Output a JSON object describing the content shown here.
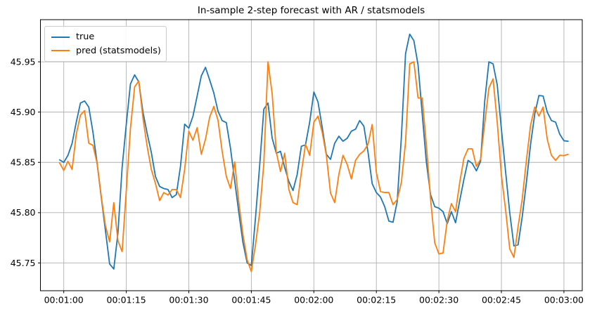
{
  "chart_data": {
    "type": "line",
    "title": "In-sample 2-step forecast with AR / statsmodels",
    "xlabel": "",
    "ylabel": "",
    "x_axis_format": "time hh:mm:ss",
    "grid": true,
    "grid_color": "#b0b0b0",
    "spine_color": "#000000",
    "legend_position": "upper left",
    "x_domain_seconds": [
      54.4,
      184.4
    ],
    "y_domain": [
      45.7224,
      45.9919
    ],
    "x_ticks": [
      {
        "seconds": 60,
        "label": "00:01:00"
      },
      {
        "seconds": 75,
        "label": "00:01:15"
      },
      {
        "seconds": 90,
        "label": "00:01:30"
      },
      {
        "seconds": 105,
        "label": "00:01:45"
      },
      {
        "seconds": 120,
        "label": "00:02:00"
      },
      {
        "seconds": 135,
        "label": "00:02:15"
      },
      {
        "seconds": 150,
        "label": "00:02:30"
      },
      {
        "seconds": 165,
        "label": "00:02:45"
      },
      {
        "seconds": 180,
        "label": "00:03:00"
      }
    ],
    "y_ticks": [
      {
        "value": 45.75,
        "label": "45.75"
      },
      {
        "value": 45.8,
        "label": "45.80"
      },
      {
        "value": 45.85,
        "label": "45.85"
      },
      {
        "value": 45.9,
        "label": "45.90"
      },
      {
        "value": 45.95,
        "label": "45.95"
      }
    ],
    "x_seconds": [
      59,
      60,
      61,
      62,
      63,
      64,
      65,
      66,
      67,
      68,
      69,
      70,
      71,
      72,
      73,
      74,
      75,
      76,
      77,
      78,
      79,
      80,
      81,
      82,
      83,
      84,
      85,
      86,
      87,
      88,
      89,
      90,
      91,
      92,
      93,
      94,
      95,
      96,
      97,
      98,
      99,
      100,
      101,
      102,
      103,
      104,
      105,
      106,
      107,
      108,
      109,
      110,
      111,
      112,
      113,
      114,
      115,
      116,
      117,
      118,
      119,
      120,
      121,
      122,
      123,
      124,
      125,
      126,
      127,
      128,
      129,
      130,
      131,
      132,
      133,
      134,
      135,
      136,
      137,
      138,
      139,
      140,
      141,
      142,
      143,
      144,
      145,
      146,
      147,
      148,
      149,
      150,
      151,
      152,
      153,
      154,
      155,
      156,
      157,
      158,
      159,
      160,
      161,
      162,
      163,
      164,
      165,
      166,
      167,
      168,
      169,
      170,
      171,
      172,
      173,
      174,
      175,
      176,
      177,
      178,
      179,
      180,
      181
    ],
    "series": [
      {
        "name": "true",
        "color": "#1f77b4",
        "values": [
          45.8525,
          45.85,
          45.857,
          45.869,
          45.89,
          45.909,
          45.911,
          45.905,
          45.88,
          45.849,
          45.815,
          45.782,
          45.749,
          45.744,
          45.78,
          45.845,
          45.888,
          45.928,
          45.937,
          45.93,
          45.9,
          45.879,
          45.86,
          45.836,
          45.826,
          45.824,
          45.823,
          45.815,
          45.818,
          45.846,
          45.888,
          45.884,
          45.896,
          45.916,
          45.936,
          45.9445,
          45.932,
          45.919,
          45.901,
          45.8916,
          45.8895,
          45.864,
          45.832,
          45.8,
          45.77,
          45.75,
          45.7475,
          45.795,
          45.847,
          45.903,
          45.909,
          45.874,
          45.859,
          45.861,
          45.845,
          45.831,
          45.822,
          45.838,
          45.866,
          45.8675,
          45.89,
          45.92,
          45.91,
          45.885,
          45.858,
          45.853,
          45.869,
          45.876,
          45.871,
          45.874,
          45.881,
          45.883,
          45.8916,
          45.886,
          45.86,
          45.8288,
          45.82,
          45.8155,
          45.806,
          45.7916,
          45.7905,
          45.811,
          45.875,
          45.958,
          45.9775,
          45.971,
          45.947,
          45.898,
          45.85,
          45.818,
          45.806,
          45.8045,
          45.801,
          45.789,
          45.801,
          45.79,
          45.812,
          45.833,
          45.852,
          45.849,
          45.8416,
          45.851,
          45.911,
          45.95,
          45.948,
          45.927,
          45.883,
          45.841,
          45.8,
          45.767,
          45.768,
          45.796,
          45.83,
          45.868,
          45.898,
          45.9165,
          45.916,
          45.9,
          45.8916,
          45.89,
          45.878,
          45.8715,
          45.871
        ]
      },
      {
        "name": "pred (statsmodels)",
        "color": "#ff7f0e",
        "values": [
          45.8495,
          45.842,
          45.851,
          45.843,
          45.878,
          45.897,
          45.9014,
          45.869,
          45.867,
          45.849,
          45.816,
          45.787,
          45.771,
          45.81,
          45.772,
          45.7613,
          45.822,
          45.884,
          45.925,
          45.931,
          45.894,
          45.866,
          45.843,
          45.829,
          45.812,
          45.82,
          45.8175,
          45.823,
          45.823,
          45.815,
          45.843,
          45.881,
          45.872,
          45.8845,
          45.858,
          45.873,
          45.895,
          45.9056,
          45.892,
          45.861,
          45.836,
          45.824,
          45.8505,
          45.81,
          45.778,
          45.753,
          45.7415,
          45.768,
          45.8,
          45.849,
          45.95,
          45.918,
          45.86,
          45.841,
          45.859,
          45.823,
          45.81,
          45.808,
          45.84,
          45.868,
          45.857,
          45.89,
          45.896,
          45.88,
          45.857,
          45.8195,
          45.81,
          45.838,
          45.857,
          45.848,
          45.8335,
          45.852,
          45.858,
          45.8614,
          45.868,
          45.8877,
          45.84,
          45.821,
          45.82,
          45.82,
          45.808,
          45.813,
          45.83,
          45.87,
          45.948,
          45.95,
          45.914,
          45.914,
          45.867,
          45.814,
          45.77,
          45.759,
          45.76,
          45.792,
          45.809,
          45.801,
          45.83,
          45.854,
          45.8635,
          45.8635,
          45.846,
          45.853,
          45.889,
          45.924,
          45.933,
          45.89,
          45.837,
          45.803,
          45.764,
          45.7555,
          45.786,
          45.8137,
          45.852,
          45.887,
          45.905,
          45.896,
          45.905,
          45.873,
          45.857,
          45.852,
          45.857,
          45.8567,
          45.858
        ]
      }
    ]
  }
}
